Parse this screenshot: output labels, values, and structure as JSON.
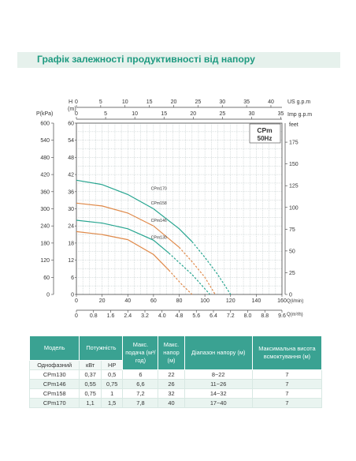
{
  "header": {
    "title": "Графік залежності продуктивності від напору"
  },
  "chart_data": {
    "type": "line",
    "title": "CPm 50Hz",
    "title_line1": "CPm",
    "title_line2": "50Hz",
    "grid": true,
    "x_primary": {
      "label": "Q(l/min)",
      "range": [
        0,
        160
      ],
      "ticks": [
        "0",
        "20",
        "40",
        "60",
        "80",
        "100",
        "120",
        "140",
        "160"
      ]
    },
    "x_secondary": {
      "label": "Q(m³/h)",
      "ticks": [
        "0",
        "0.8",
        "1.6",
        "2.4",
        "3.2",
        "4.0",
        "4.8",
        "5.6",
        "6.4",
        "7.2",
        "8.0",
        "8.8",
        "9.6"
      ]
    },
    "x_top_us": {
      "label": "US g.p.m",
      "ticks": [
        "0",
        "5",
        "10",
        "15",
        "20",
        "25",
        "30",
        "35",
        "40"
      ]
    },
    "x_top_imp": {
      "label": "Imp g.p.m",
      "ticks": [
        "0",
        "5",
        "10",
        "15",
        "20",
        "25",
        "30",
        "35"
      ]
    },
    "y_head_m": {
      "label": "H (m)",
      "range": [
        0,
        60
      ],
      "ticks": [
        "0",
        "6",
        "12",
        "18",
        "24",
        "30",
        "36",
        "42",
        "48",
        "54",
        "60"
      ]
    },
    "y_pressure": {
      "label": "P(kPa)",
      "ticks": [
        "0",
        "60",
        "120",
        "180",
        "240",
        "300",
        "360",
        "420",
        "480",
        "540",
        "600"
      ]
    },
    "y_feet": {
      "label": "feet",
      "ticks": [
        "0",
        "25",
        "50",
        "75",
        "100",
        "125",
        "150",
        "175"
      ]
    },
    "series": [
      {
        "name": "CPm170",
        "color": "#27a590",
        "solid": [
          [
            0,
            40
          ],
          [
            20,
            38.5
          ],
          [
            40,
            35
          ],
          [
            60,
            30
          ],
          [
            80,
            23
          ],
          [
            90,
            18.5
          ]
        ],
        "dashed": [
          [
            90,
            18.5
          ],
          [
            100,
            13
          ],
          [
            110,
            7
          ],
          [
            120,
            0
          ]
        ]
      },
      {
        "name": "CPm158",
        "color": "#e08a4a",
        "solid": [
          [
            0,
            32
          ],
          [
            20,
            31
          ],
          [
            40,
            28.5
          ],
          [
            60,
            24
          ],
          [
            80,
            16.5
          ]
        ],
        "dashed": [
          [
            80,
            16.5
          ],
          [
            90,
            11.5
          ],
          [
            100,
            6
          ],
          [
            108,
            0
          ]
        ]
      },
      {
        "name": "CPm146",
        "color": "#27a590",
        "solid": [
          [
            0,
            26
          ],
          [
            20,
            25
          ],
          [
            40,
            23
          ],
          [
            60,
            19
          ],
          [
            72,
            14.5
          ]
        ],
        "dashed": [
          [
            72,
            14.5
          ],
          [
            90,
            7
          ],
          [
            104,
            0
          ]
        ]
      },
      {
        "name": "CPm130",
        "color": "#e08a4a",
        "solid": [
          [
            0,
            22
          ],
          [
            20,
            21
          ],
          [
            40,
            19.2
          ],
          [
            60,
            14
          ],
          [
            72,
            8.5
          ]
        ],
        "dashed": [
          [
            72,
            8.5
          ],
          [
            82,
            3.5
          ],
          [
            90,
            0
          ]
        ]
      }
    ]
  },
  "table": {
    "headers": {
      "model": "Модель",
      "power": "Потужність",
      "max_flow": "Макс. подача (м³/год)",
      "max_head": "Макс. напор (м)",
      "head_range": "Діапазон напору (м)",
      "max_suction": "Максимальна висота всмоктування (м)"
    },
    "subheaders": {
      "single_phase": "Однофазний",
      "kw": "кВт",
      "hp": "HP"
    },
    "rows": [
      {
        "model": "CPm130",
        "kw": "0,37",
        "hp": "0,5",
        "flow": "6",
        "head": "22",
        "range": "8~22",
        "suction": "7"
      },
      {
        "model": "CPm146",
        "kw": "0,55",
        "hp": "0,75",
        "flow": "6,6",
        "head": "26",
        "range": "11~26",
        "suction": "7"
      },
      {
        "model": "CPm158",
        "kw": "0,75",
        "hp": "1",
        "flow": "7,2",
        "head": "32",
        "range": "14~32",
        "suction": "7"
      },
      {
        "model": "CPm170",
        "kw": "1,1",
        "hp": "1,5",
        "flow": "7,8",
        "head": "40",
        "range": "17~40",
        "suction": "7"
      }
    ]
  }
}
